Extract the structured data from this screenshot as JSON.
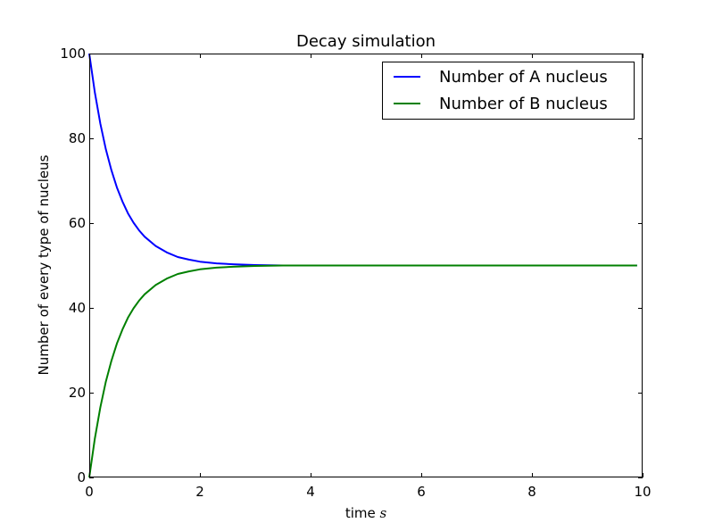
{
  "chart_data": {
    "type": "line",
    "title": "Decay simulation",
    "xlabel": "time",
    "xlabel_unit": "s",
    "ylabel": "Number of every type of nucleus",
    "xlim": [
      0,
      10
    ],
    "ylim": [
      0,
      100
    ],
    "x_ticks": [
      0,
      2,
      4,
      6,
      8,
      10
    ],
    "x_tick_labels": [
      "0",
      "2",
      "4",
      "6",
      "8",
      "10"
    ],
    "y_ticks": [
      0,
      20,
      40,
      60,
      80,
      100
    ],
    "y_tick_labels": [
      "0",
      "20",
      "40",
      "60",
      "80",
      "100"
    ],
    "grid": false,
    "legend": "top-right",
    "x": [
      0,
      0.1,
      0.2,
      0.3,
      0.4,
      0.5,
      0.6,
      0.7,
      0.8,
      0.9,
      1.0,
      1.2,
      1.4,
      1.6,
      1.8,
      2.0,
      2.3,
      2.6,
      3.0,
      3.5,
      4.0,
      5.0,
      6.0,
      7.0,
      8.0,
      9.0,
      9.9
    ],
    "series": [
      {
        "name": "Number of A nucleus",
        "color": "#0000ff",
        "values": [
          100,
          90.9,
          83.5,
          77.4,
          72.5,
          68.4,
          65.1,
          62.3,
          60.1,
          58.3,
          56.8,
          54.6,
          53.1,
          52.0,
          51.4,
          50.9,
          50.5,
          50.3,
          50.1,
          50.0,
          50.0,
          50.0,
          50.0,
          50.0,
          50.0,
          50.0,
          50.0
        ]
      },
      {
        "name": "Number of B nucleus",
        "color": "#008000",
        "values": [
          0,
          9.1,
          16.5,
          22.6,
          27.5,
          31.6,
          34.9,
          37.7,
          39.9,
          41.7,
          43.2,
          45.4,
          46.9,
          48.0,
          48.6,
          49.1,
          49.5,
          49.7,
          49.9,
          50.0,
          50.0,
          50.0,
          50.0,
          50.0,
          50.0,
          50.0,
          50.0
        ]
      }
    ]
  }
}
